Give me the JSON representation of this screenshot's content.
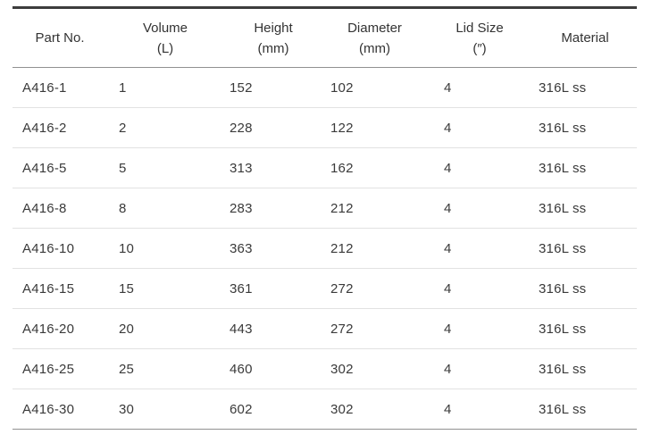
{
  "table": {
    "columns": [
      {
        "label_line1": "Part No.",
        "label_line2": ""
      },
      {
        "label_line1": "Volume",
        "label_line2": "(L)"
      },
      {
        "label_line1": "Height",
        "label_line2": "(mm)"
      },
      {
        "label_line1": "Diameter",
        "label_line2": "(mm)"
      },
      {
        "label_line1": "Lid Size",
        "label_line2": "(″)"
      },
      {
        "label_line1": "Material",
        "label_line2": ""
      }
    ],
    "rows": [
      [
        "A416-1",
        "1",
        "152",
        "102",
        "4",
        "316L ss"
      ],
      [
        "A416-2",
        "2",
        "228",
        "122",
        "4",
        "316L ss"
      ],
      [
        "A416-5",
        "5",
        "313",
        "162",
        "4",
        "316L ss"
      ],
      [
        "A416-8",
        "8",
        "283",
        "212",
        "4",
        "316L ss"
      ],
      [
        "A416-10",
        "10",
        "363",
        "212",
        "4",
        "316L ss"
      ],
      [
        "A416-15",
        "15",
        "361",
        "272",
        "4",
        "316L ss"
      ],
      [
        "A416-20",
        "20",
        "443",
        "272",
        "4",
        "316L ss"
      ],
      [
        "A416-25",
        "25",
        "460",
        "302",
        "4",
        "316L ss"
      ],
      [
        "A416-30",
        "30",
        "602",
        "302",
        "4",
        "316L ss"
      ]
    ],
    "colors": {
      "background": "#ffffff",
      "text": "#333333",
      "top_border": "#3d3d3d",
      "header_rule": "#919191",
      "row_rule": "#e2e2e2",
      "bottom_border": "#919191"
    }
  }
}
